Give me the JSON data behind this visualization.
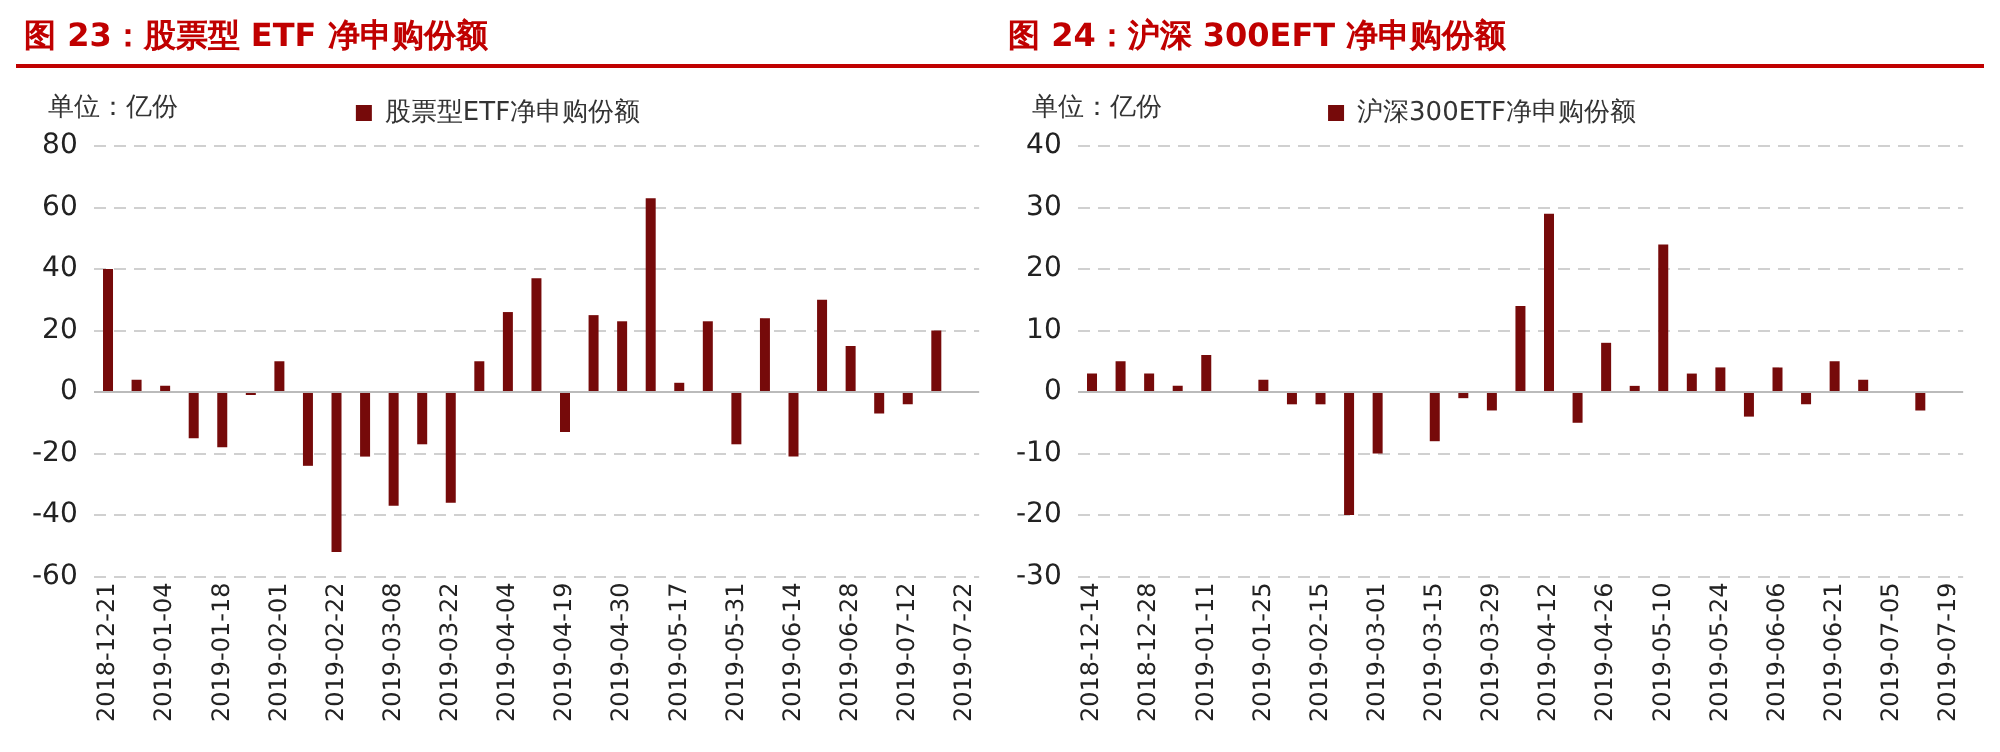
{
  "chart_data": [
    {
      "type": "bar",
      "title": "图 23：股票型 ETF 净申购份额",
      "annotations": [
        "单位：亿份"
      ],
      "categories": [
        "2018-12-21",
        null,
        "2019-01-04",
        null,
        "2019-01-18",
        null,
        "2019-02-01",
        null,
        "2019-02-22",
        null,
        "2019-03-08",
        null,
        "2019-03-22",
        null,
        "2019-04-04",
        null,
        "2019-04-19",
        null,
        "2019-04-30",
        null,
        "2019-05-17",
        null,
        "2019-05-31",
        null,
        "2019-06-14",
        null,
        "2019-06-28",
        null,
        "2019-07-12",
        null,
        "2019-07-22"
      ],
      "series": [
        {
          "name": "股票型ETF净申购份额",
          "color": "#760a0a",
          "values": [
            40,
            4,
            2,
            -15,
            -18,
            -1,
            10,
            -24,
            -52,
            -21,
            -37,
            -17,
            -36,
            10,
            26,
            37,
            -13,
            25,
            23,
            63,
            3,
            23,
            -17,
            24,
            -21,
            30,
            15,
            -7,
            -4,
            20,
            null
          ]
        }
      ],
      "ylim": [
        -60,
        80
      ],
      "yticks": [
        -60,
        -40,
        -20,
        0,
        20,
        40,
        60,
        80
      ],
      "grid": "y",
      "legend": "top"
    },
    {
      "type": "bar",
      "title": "图 24：沪深 300EFT 净申购份额",
      "annotations": [
        "单位：亿份"
      ],
      "categories": [
        "2018-12-14",
        null,
        "2018-12-28",
        null,
        "2019-01-11",
        null,
        "2019-01-25",
        null,
        "2019-02-15",
        null,
        "2019-03-01",
        null,
        "2019-03-15",
        null,
        "2019-03-29",
        null,
        "2019-04-12",
        null,
        "2019-04-26",
        null,
        "2019-05-10",
        null,
        "2019-05-24",
        null,
        "2019-06-06",
        null,
        "2019-06-21",
        null,
        "2019-07-05",
        null,
        "2019-07-19"
      ],
      "series": [
        {
          "name": "沪深300ETF净申购份额",
          "color": "#760a0a",
          "values": [
            3,
            5,
            3,
            1,
            6,
            0,
            2,
            -2,
            -2,
            -20,
            -10,
            0,
            -8,
            -1,
            -3,
            14,
            29,
            -5,
            8,
            1,
            24,
            3,
            4,
            -4,
            4,
            -2,
            5,
            2,
            0,
            -3,
            0
          ]
        }
      ],
      "ylim": [
        -30,
        40
      ],
      "yticks": [
        -30,
        -20,
        -10,
        0,
        10,
        20,
        30,
        40
      ],
      "grid": "y",
      "legend": "top"
    }
  ]
}
